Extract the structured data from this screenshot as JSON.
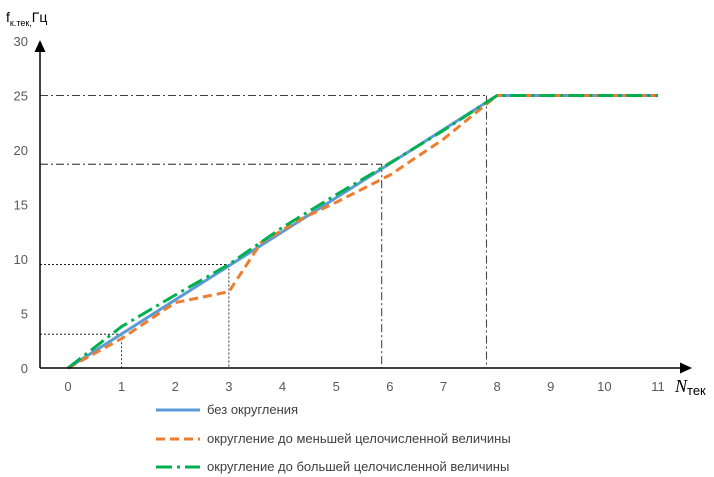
{
  "chart_data": {
    "type": "line",
    "ylabel_main": "f",
    "ylabel_sub": "к.тек,",
    "ylabel_unit": "Гц",
    "xlabel_main": "N",
    "xlabel_sub": "тек",
    "xlim": [
      0,
      11
    ],
    "ylim": [
      0,
      30
    ],
    "x_ticks": [
      "0",
      "1",
      "2",
      "3",
      "4",
      "5",
      "6",
      "7",
      "8",
      "9",
      "10",
      "11"
    ],
    "y_ticks": [
      "0",
      "5",
      "10",
      "15",
      "20",
      "25",
      "30"
    ],
    "grid": false,
    "legend_position": "bottom",
    "series": [
      {
        "name": "без округления",
        "color": "#5B9BD5",
        "style": "solid",
        "points": [
          [
            0,
            0
          ],
          [
            8,
            25
          ],
          [
            11,
            25
          ]
        ]
      },
      {
        "name": "округление до меньшей целочисленной величины",
        "color": "#ED7D31",
        "style": "dashed",
        "points": [
          [
            0,
            0
          ],
          [
            1,
            2.7
          ],
          [
            2,
            6
          ],
          [
            3,
            7
          ],
          [
            3.6,
            11.5
          ],
          [
            4.4,
            13.8
          ],
          [
            5,
            15.2
          ],
          [
            6,
            17.7
          ],
          [
            7,
            21
          ],
          [
            8,
            25
          ],
          [
            11,
            25
          ]
        ]
      },
      {
        "name": "округление до большей целочисленной величины",
        "color": "#00B050",
        "style": "dashdot",
        "points": [
          [
            0,
            0
          ],
          [
            1,
            3.8
          ],
          [
            2,
            6.7
          ],
          [
            3,
            9.5
          ],
          [
            4,
            12.9
          ],
          [
            5,
            15.9
          ],
          [
            6,
            18.8
          ],
          [
            7,
            21.8
          ],
          [
            8,
            25
          ],
          [
            11,
            25
          ]
        ]
      }
    ],
    "reference_lines": [
      {
        "x": 1,
        "y": 3.1,
        "style": "dotted"
      },
      {
        "x": 3,
        "y": 9.5,
        "style": "dotted"
      },
      {
        "x": 5.85,
        "y": 18.7,
        "style": "dashdot"
      },
      {
        "x": 7.8,
        "y": 25,
        "style": "dashdot"
      }
    ]
  },
  "colors": {
    "axis": "#000000",
    "tick_text": "#595959",
    "reference_line": "#000000"
  }
}
